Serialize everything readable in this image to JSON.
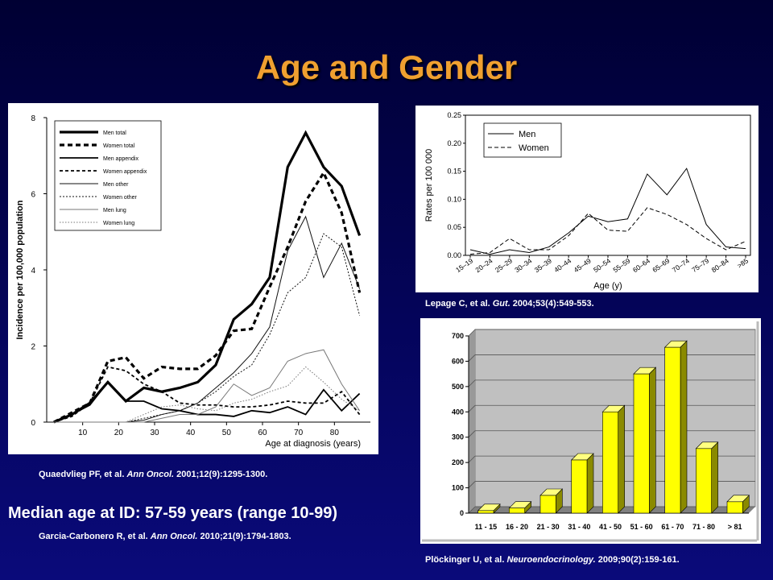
{
  "slide": {
    "title": "Age and Gender",
    "median_text": "Median age at ID: 57-59 years (range 10-99)",
    "refs": [
      {
        "authors": "Quaedvlieg PF, et al. ",
        "journal": "Ann Oncol.",
        "cite": " 2001;12(9):1295-1300."
      },
      {
        "authors": "Lepage C, et al. ",
        "journal": "Gut.",
        "cite": " 2004;53(4):549-553."
      },
      {
        "authors": "Garcia-Carbonero R, et al. ",
        "journal": "Ann Oncol.",
        "cite": " 2010;21(9):1794-1803."
      },
      {
        "authors": "Plöckinger U, et al. ",
        "journal": "Neuroendocrinology.",
        "cite": " 2009;90(2):159-161."
      }
    ]
  },
  "chart_data": [
    {
      "type": "line",
      "xlabel": "Age at diagnosis (years)",
      "ylabel": "Incidence per 100,000 population",
      "xlim": [
        0,
        90
      ],
      "ylim": [
        0,
        8
      ],
      "xticks": [
        10,
        20,
        30,
        40,
        50,
        60,
        70,
        80
      ],
      "yticks": [
        0,
        2,
        4,
        6,
        8
      ],
      "legend_position": "top-left",
      "x": [
        2,
        7,
        12,
        17,
        22,
        27,
        32,
        37,
        42,
        47,
        52,
        57,
        62,
        67,
        72,
        77,
        82,
        87
      ],
      "series": [
        {
          "name": "Men total",
          "style": "thick-solid",
          "values": [
            0,
            0.2,
            0.5,
            1.05,
            0.55,
            0.9,
            0.8,
            0.9,
            1.05,
            1.5,
            2.7,
            3.1,
            3.8,
            6.7,
            7.6,
            6.7,
            6.2,
            4.9
          ]
        },
        {
          "name": "Women total",
          "style": "thick-dashed",
          "values": [
            0,
            0.25,
            0.5,
            1.6,
            1.7,
            1.15,
            1.45,
            1.4,
            1.4,
            1.75,
            2.4,
            2.45,
            3.55,
            4.6,
            5.8,
            6.55,
            5.5,
            3.4
          ]
        },
        {
          "name": "Men appendix",
          "style": "solid",
          "values": [
            0,
            0.2,
            0.45,
            1.05,
            0.55,
            0.55,
            0.35,
            0.3,
            0.2,
            0.2,
            0.15,
            0.3,
            0.25,
            0.4,
            0.2,
            0.85,
            0.3,
            0.75
          ]
        },
        {
          "name": "Women appendix",
          "style": "dashed",
          "values": [
            0,
            0.15,
            0.5,
            1.45,
            1.35,
            1.0,
            0.8,
            0.5,
            0.45,
            0.45,
            0.4,
            0.4,
            0.45,
            0.55,
            0.5,
            0.5,
            0.8,
            0.2
          ]
        },
        {
          "name": "Men other",
          "style": "thin-solid",
          "values": [
            0,
            0,
            0,
            0,
            0,
            0.05,
            0.2,
            0.3,
            0.5,
            0.9,
            1.3,
            1.8,
            2.5,
            4.5,
            5.4,
            3.8,
            4.7,
            3.5
          ]
        },
        {
          "name": "Women other",
          "style": "thin-dotted",
          "values": [
            0,
            0,
            0,
            0,
            0,
            0.1,
            0.2,
            0.3,
            0.5,
            0.8,
            1.2,
            1.5,
            2.3,
            3.4,
            3.8,
            4.95,
            4.6,
            2.8
          ]
        },
        {
          "name": "Men lung",
          "style": "thin-gray",
          "values": [
            0,
            0,
            0,
            0,
            0,
            0,
            0.1,
            0.2,
            0.2,
            0.4,
            1.0,
            0.7,
            0.9,
            1.6,
            1.8,
            1.9,
            1.0,
            0.3
          ]
        },
        {
          "name": "Women lung",
          "style": "thin-gray-dotted",
          "values": [
            0,
            0,
            0,
            0,
            0,
            0.2,
            0.4,
            0.45,
            0.35,
            0.3,
            0.5,
            0.6,
            0.8,
            0.95,
            1.45,
            1.05,
            0.6,
            0.3
          ]
        }
      ]
    },
    {
      "type": "line",
      "xlabel": "Age (y)",
      "ylabel": "Rates per 100 000",
      "ylim": [
        0,
        0.25
      ],
      "yticks": [
        "0.00",
        "0.05",
        "0.10",
        "0.15",
        "0.20",
        "0.25"
      ],
      "legend_position": "top-left",
      "categories": [
        "15–19",
        "20–24",
        "25–29",
        "30–34",
        "35–39",
        "40–44",
        "45–49",
        "50–54",
        "55–59",
        "60–64",
        "65–69",
        "70–74",
        "75–79",
        "80–84",
        ">85"
      ],
      "series": [
        {
          "name": "Men",
          "style": "solid",
          "values": [
            0.01,
            0.002,
            0.01,
            0.005,
            0.015,
            0.04,
            0.07,
            0.06,
            0.065,
            0.145,
            0.108,
            0.155,
            0.055,
            0.015,
            0.012
          ]
        },
        {
          "name": "Women",
          "style": "dashed",
          "values": [
            0.002,
            0.005,
            0.03,
            0.01,
            0.01,
            0.035,
            0.075,
            0.045,
            0.043,
            0.085,
            0.073,
            0.055,
            0.03,
            0.01,
            0.025
          ]
        }
      ]
    },
    {
      "type": "bar",
      "ylim": [
        0,
        700
      ],
      "yticks": [
        0,
        100,
        200,
        300,
        400,
        500,
        600,
        700
      ],
      "categories": [
        "11 - 15",
        "16 - 20",
        "21 - 30",
        "31 - 40",
        "41 - 50",
        "51 - 60",
        "61 - 70",
        "71 - 80",
        "> 81"
      ],
      "values": [
        10,
        20,
        70,
        210,
        400,
        550,
        655,
        255,
        45
      ],
      "bar_color": "#ffff00",
      "plot_bg": "#c0c0c0"
    }
  ]
}
